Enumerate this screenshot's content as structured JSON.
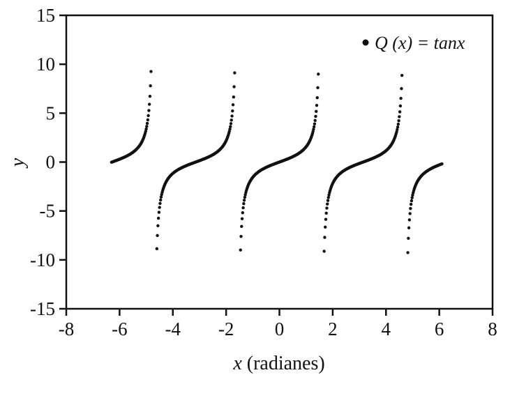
{
  "figure": {
    "background": "#ffffff",
    "frame_color": "#111111"
  },
  "chart_data": {
    "type": "scatter",
    "title": "",
    "xlabel": "x (radianes)",
    "xlabel_variable": "x",
    "xlabel_rest": "(radianes)",
    "ylabel": "y",
    "xlim": [
      -8,
      8
    ],
    "ylim": [
      -15,
      15
    ],
    "x_tick_values": [
      -8,
      -6,
      -4,
      -2,
      0,
      2,
      4,
      6,
      8
    ],
    "x_tick_labels": [
      "-8",
      "-6",
      "-4",
      "-2",
      "0",
      "2",
      "4",
      "6",
      "8"
    ],
    "y_tick_values": [
      -15,
      -10,
      -5,
      0,
      5,
      10,
      15
    ],
    "y_tick_labels": [
      "-15",
      "-10",
      "-5",
      "0",
      "5",
      "10",
      "15"
    ],
    "grid": false,
    "frame": true,
    "legend": {
      "label": "Q (x) = tanx",
      "marker": "filled-dot",
      "position": "top-right"
    },
    "series": [
      {
        "name": "Q(x) = tan x",
        "function": "tan",
        "x_start": -6.3,
        "x_end": 6.1,
        "x_step": 0.02,
        "y_clip": 10.5,
        "color": "#111111",
        "marker_radius": 2.2,
        "asymptotes_x": [
          -4.7124,
          -1.5708,
          1.5708,
          4.7124
        ],
        "zero_crossings_x": [
          -6.2832,
          -3.1416,
          0,
          3.1416,
          6.2832
        ]
      }
    ]
  }
}
